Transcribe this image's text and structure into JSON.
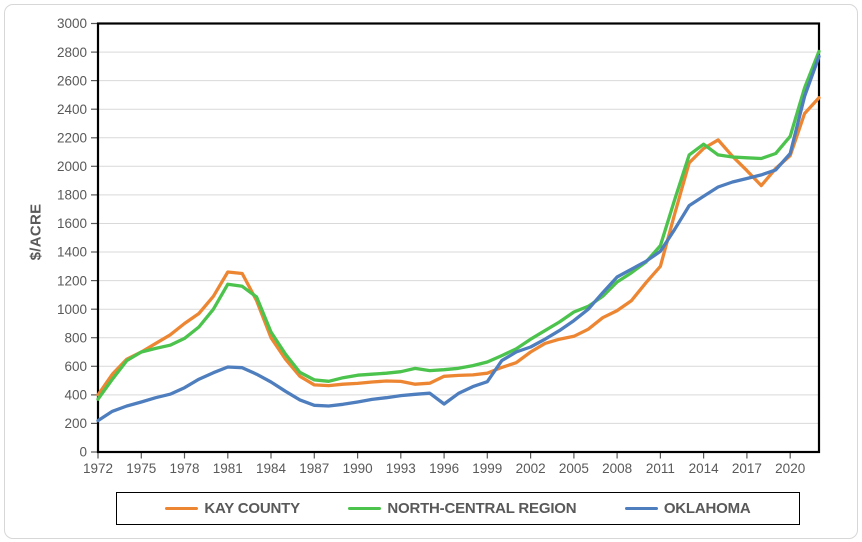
{
  "chart_data": {
    "type": "line",
    "title": "",
    "xlabel": "",
    "ylabel": "$/ACRE",
    "ylim": [
      0,
      3000
    ],
    "y_tick_step": 200,
    "grid": true,
    "legend_position": "bottom",
    "x": [
      1972,
      1973,
      1974,
      1975,
      1976,
      1977,
      1978,
      1979,
      1980,
      1981,
      1982,
      1983,
      1984,
      1985,
      1986,
      1987,
      1988,
      1989,
      1990,
      1991,
      1992,
      1993,
      1994,
      1995,
      1996,
      1997,
      1998,
      1999,
      2000,
      2001,
      2002,
      2003,
      2004,
      2005,
      2006,
      2007,
      2008,
      2009,
      2010,
      2011,
      2012,
      2013,
      2014,
      2015,
      2016,
      2017,
      2018,
      2019,
      2020,
      2021,
      2022
    ],
    "x_tick_labels": [
      "1972",
      "1975",
      "1978",
      "1981",
      "1984",
      "1987",
      "1990",
      "1993",
      "1996",
      "1999",
      "2002",
      "2005",
      "2008",
      "2011",
      "2014",
      "2017",
      "2020"
    ],
    "series": [
      {
        "name": "KAY COUNTY",
        "color": "#ED8633",
        "values": [
          400,
          545,
          650,
          700,
          760,
          820,
          900,
          970,
          1090,
          1260,
          1250,
          1060,
          800,
          650,
          530,
          470,
          465,
          475,
          480,
          490,
          497,
          494,
          475,
          482,
          530,
          536,
          540,
          552,
          592,
          625,
          700,
          760,
          790,
          810,
          860,
          940,
          990,
          1060,
          1185,
          1300,
          1670,
          2025,
          2125,
          2185,
          2070,
          1970,
          1865,
          1985,
          2075,
          2370,
          2480
        ]
      },
      {
        "name": "NORTH-CENTRAL REGION",
        "color": "#4CC34C",
        "values": [
          370,
          510,
          640,
          700,
          725,
          748,
          795,
          875,
          1000,
          1175,
          1160,
          1085,
          840,
          685,
          557,
          505,
          495,
          520,
          538,
          545,
          552,
          562,
          585,
          570,
          576,
          586,
          605,
          630,
          675,
          722,
          790,
          850,
          910,
          980,
          1020,
          1090,
          1190,
          1255,
          1330,
          1445,
          1770,
          2080,
          2155,
          2080,
          2065,
          2060,
          2055,
          2090,
          2210,
          2550,
          2805
        ]
      },
      {
        "name": "OKLAHOMA",
        "color": "#4E7EBE",
        "values": [
          220,
          285,
          322,
          350,
          380,
          405,
          450,
          510,
          555,
          595,
          590,
          545,
          490,
          425,
          365,
          327,
          322,
          334,
          350,
          368,
          380,
          395,
          404,
          412,
          336,
          410,
          458,
          492,
          640,
          700,
          735,
          790,
          850,
          920,
          1000,
          1115,
          1225,
          1280,
          1335,
          1405,
          1560,
          1725,
          1790,
          1855,
          1890,
          1915,
          1940,
          1975,
          2090,
          2490,
          2770
        ]
      }
    ],
    "axis_text_color": "#595959",
    "gridline_color": "#D9D9D9",
    "plot_border_color": "#000000"
  }
}
